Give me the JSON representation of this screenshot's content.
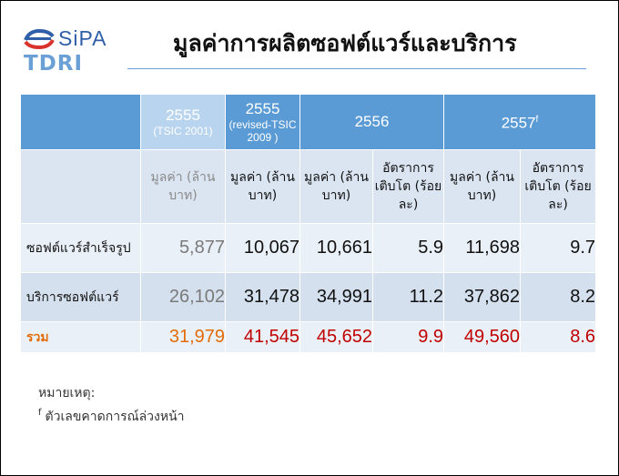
{
  "logo": {
    "sipa": "SiPA",
    "tdri": "TDRI",
    "mark_color": "#2f5fa8",
    "mark_accent": "#d9342b"
  },
  "title": "มูลค่าการผลิตซอฟต์แวร์และบริการ",
  "table": {
    "header_years": [
      {
        "year": "2555",
        "sub": "(TSIC 2001)"
      },
      {
        "year": "2555",
        "sub": "(revised-TSIC 2009 )"
      },
      {
        "year": "2556",
        "sub": ""
      },
      {
        "year": "2557",
        "sup": "f",
        "sub": ""
      }
    ],
    "sub_headers": [
      "มูลค่า (ล้านบาท)",
      "มูลค่า (ล้านบาท)",
      "มูลค่า (ล้านบาท)",
      "อัตราการเติบโต (ร้อยละ)",
      "มูลค่า (ล้านบาท)",
      "อัตราการเติบโต (ร้อยละ)"
    ],
    "rows": [
      {
        "label": "ซอฟต์แวร์สำเร็จรูป",
        "values": [
          "5,877",
          "10,067",
          "10,661",
          "5.9",
          "11,698",
          "9.7"
        ]
      },
      {
        "label": "บริการซอฟต์แวร์",
        "values": [
          "26,102",
          "31,478",
          "34,991",
          "11.2",
          "37,862",
          "8.2"
        ]
      },
      {
        "label": "รวม",
        "values": [
          "31,979",
          "41,545",
          "45,652",
          "9.9",
          "49,560",
          "8.6"
        ]
      }
    ]
  },
  "notes": {
    "heading": "หมายเหตุ:",
    "footnote_mark": "f",
    "footnote_text": "ตัวเลขคาดการณ์ล่วงหน้า"
  },
  "colors": {
    "header_blue": "#5b9bd5",
    "header_pale": "#b9d4ee",
    "total_red": "#c00000",
    "total_orange": "#e36c09"
  }
}
